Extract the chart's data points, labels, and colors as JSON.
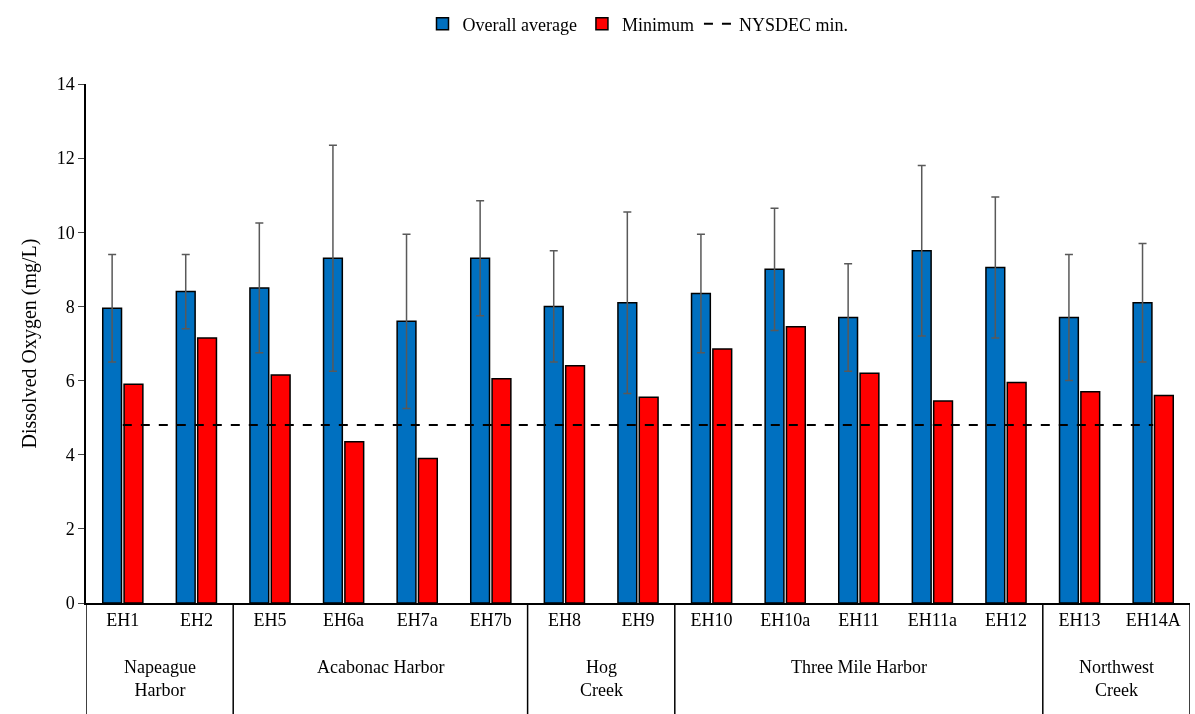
{
  "chart_data": {
    "type": "bar",
    "ylabel": "Dissolved Oxygen (mg/L)",
    "categories": [
      "EH1",
      "EH2",
      "EH5",
      "EH6a",
      "EH7a",
      "EH7b",
      "EH8",
      "EH9",
      "EH10",
      "EH10a",
      "EH11",
      "EH11a",
      "EH12",
      "EH13",
      "EH14A"
    ],
    "series": [
      {
        "name": "Overall average",
        "color": "#0070c0",
        "values": [
          7.95,
          8.4,
          8.5,
          9.3,
          7.6,
          9.3,
          8.0,
          8.1,
          8.35,
          9.0,
          7.7,
          9.5,
          9.05,
          7.7,
          8.1
        ],
        "errors": [
          1.45,
          1.0,
          1.75,
          3.05,
          2.35,
          1.55,
          1.5,
          2.45,
          1.6,
          1.65,
          1.45,
          2.3,
          1.9,
          1.7,
          1.6
        ]
      },
      {
        "name": "Minimum",
        "color": "#ff0000",
        "values": [
          5.9,
          7.15,
          6.15,
          4.35,
          3.9,
          6.05,
          6.4,
          5.55,
          6.85,
          7.45,
          6.2,
          5.45,
          5.95,
          5.7,
          5.6
        ]
      }
    ],
    "ref_lines": [
      {
        "axis": "y",
        "value": 4.8,
        "label": "NYSDEC min.",
        "color": "#000000",
        "line_style": "dashed"
      }
    ],
    "annotations": [
      "Napeague Harbor",
      "Acabonac Harbor",
      "Hog Creek",
      "Three Mile Harbor",
      "Northwest Creek"
    ],
    "ylim": [
      0,
      14
    ],
    "yticks": [
      0,
      2,
      4,
      6,
      8,
      10,
      12,
      14
    ],
    "grid": false,
    "legend": "top"
  }
}
